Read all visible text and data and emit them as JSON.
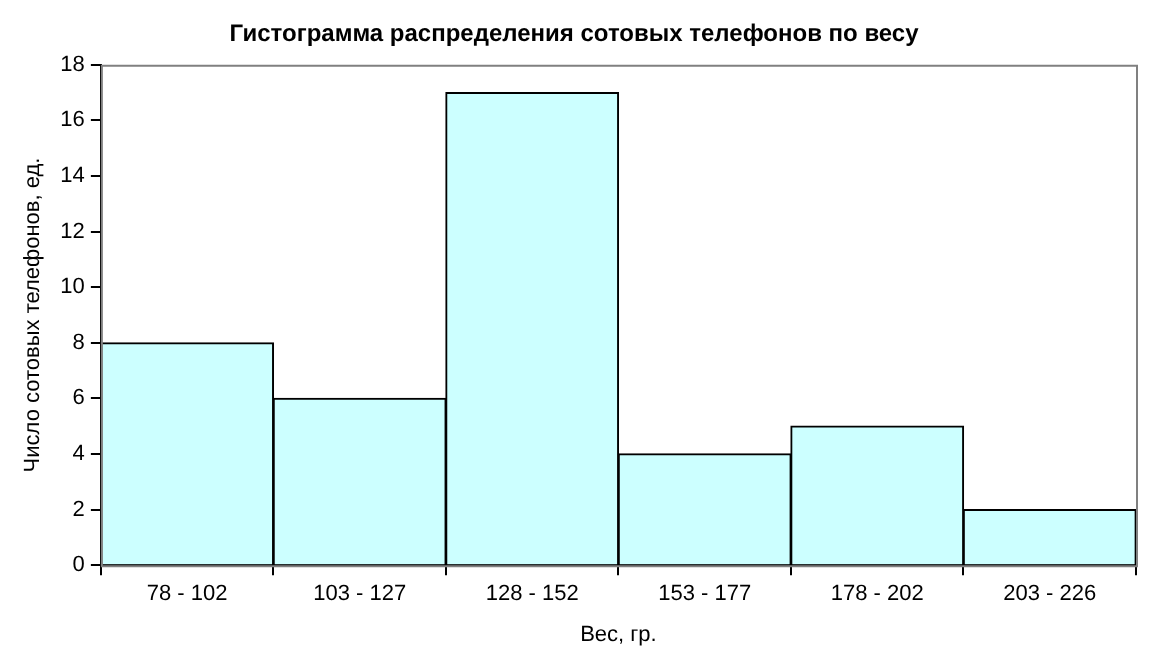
{
  "chart_data": {
    "type": "bar",
    "title": "Гистограмма распределения сотовых телефонов по весу",
    "xlabel": "Вес, гр.",
    "ylabel": "Число сотовых телефонов, ед.",
    "categories": [
      "78 - 102",
      "103 - 127",
      "128 - 152",
      "153 - 177",
      "178 - 202",
      "203 - 226"
    ],
    "values": [
      8,
      6,
      17,
      4,
      5,
      2
    ],
    "color": "#ccffff",
    "ylim": [
      0,
      18
    ],
    "yticks": [
      0,
      2,
      4,
      6,
      8,
      10,
      12,
      14,
      16,
      18
    ],
    "grid": false,
    "legend": false
  }
}
